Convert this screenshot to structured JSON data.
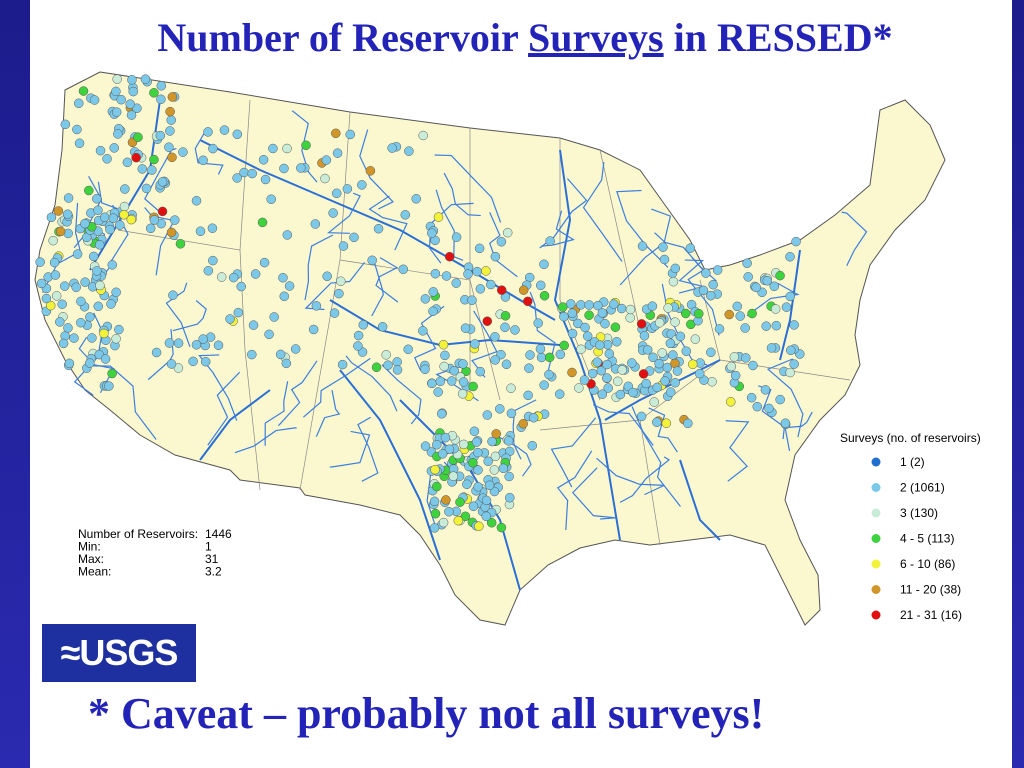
{
  "header": {
    "title_before": "Number of Reservoir ",
    "title_underlined": "Surveys",
    "title_after": " in RESSED*"
  },
  "legend": {
    "title": "Surveys (no. of reservoirs)",
    "items": [
      {
        "label": "1 (2)",
        "color": "#1f6fd0"
      },
      {
        "label": "2 (1061)",
        "color": "#7cc8e8"
      },
      {
        "label": "3 (130)",
        "color": "#c8ecd8"
      },
      {
        "label": "4 - 5 (113)",
        "color": "#3fd23f"
      },
      {
        "label": "6 - 10 (86)",
        "color": "#f2f23a"
      },
      {
        "label": "11 - 20 (38)",
        "color": "#d0962a"
      },
      {
        "label": "21 - 31 (16)",
        "color": "#e01010"
      }
    ]
  },
  "stats": [
    [
      "Number of Reservoirs:",
      "1446"
    ],
    [
      "Min:",
      "1"
    ],
    [
      "Max:",
      "31"
    ],
    [
      "Mean:",
      "3.2"
    ]
  ],
  "logo": "USGS",
  "caveat": "* Caveat – probably not all surveys!"
}
